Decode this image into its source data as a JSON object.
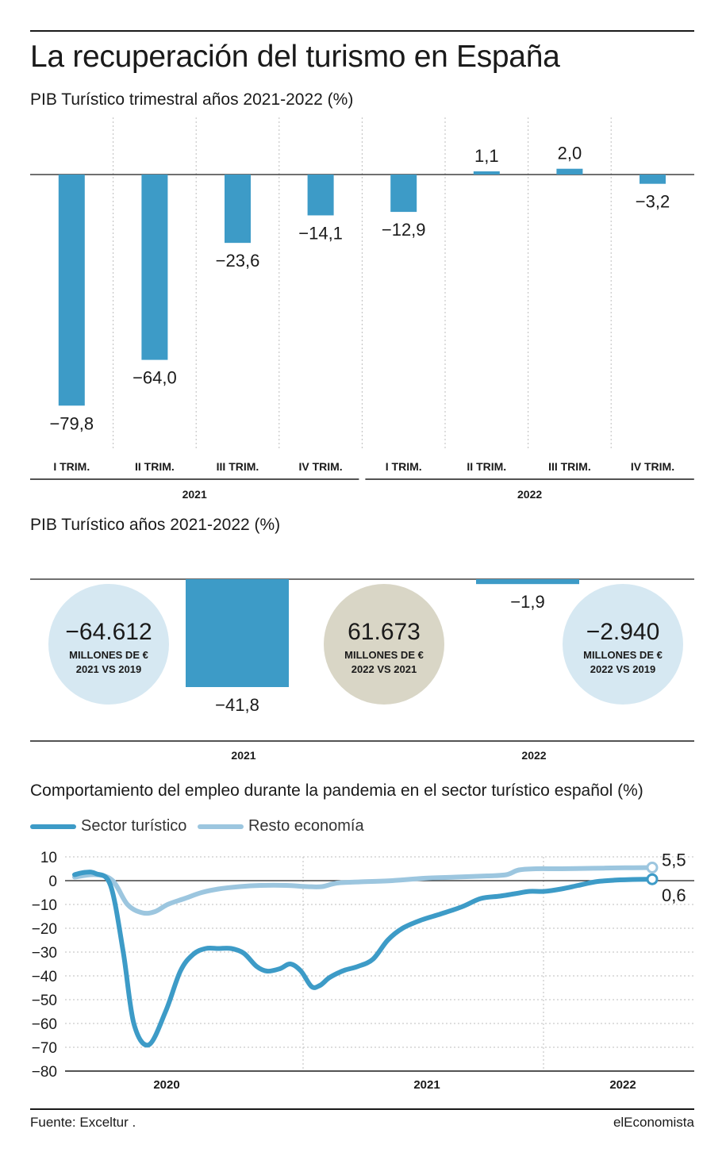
{
  "header": {
    "title": "La recuperación del turismo en España"
  },
  "footer": {
    "source": "Fuente: Exceltur .",
    "brand": "elEconomista"
  },
  "colors": {
    "bar": "#3d9bc7",
    "sector_line": "#3d9bc7",
    "resto_line": "#9cc6df",
    "circle_blue": "#d6e8f2",
    "circle_beige": "#d9d6c6",
    "grid": "#bdbdbd"
  },
  "chart_data": [
    {
      "type": "bar",
      "title": "PIB Turístico trimestral años 2021-2022 (%)",
      "categories": [
        "I TRIM.",
        "II TRIM.",
        "III TRIM.",
        "IV TRIM.",
        "I TRIM.",
        "II TRIM.",
        "III TRIM.",
        "IV TRIM."
      ],
      "values": [
        -79.8,
        -64.0,
        -23.6,
        -14.1,
        -12.9,
        1.1,
        2.0,
        -3.2
      ],
      "value_labels": [
        "−79,8",
        "−64,0",
        "−23,6",
        "−14,1",
        "−12,9",
        "1,1",
        "2,0",
        "−3,2"
      ],
      "groups": [
        {
          "label": "2021",
          "categories": 4
        },
        {
          "label": "2022",
          "categories": 4
        }
      ],
      "ylim": [
        -80,
        2
      ],
      "grid": "vertical dotted"
    },
    {
      "type": "bar",
      "title": "PIB Turístico años 2021-2022 (%)",
      "categories": [
        "2021",
        "2022"
      ],
      "values": [
        -41.8,
        -1.9
      ],
      "value_labels": [
        "−41,8",
        "−1,9"
      ],
      "ylim": [
        -45,
        0
      ],
      "annotations": [
        {
          "value": "−64.612",
          "line1": "MILLONES DE €",
          "line2": "2021 VS 2019",
          "style": "blue"
        },
        {
          "value": "61.673",
          "line1": "MILLONES DE €",
          "line2": "2022 VS 2021",
          "style": "beige"
        },
        {
          "value": "−2.940",
          "line1": "MILLONES DE €",
          "line2": "2022 VS 2019",
          "style": "blue"
        }
      ]
    },
    {
      "type": "line",
      "title": "Comportamiento del empleo durante la pandemia en el sector turístico español (%)",
      "x_ticks": [
        "2020",
        "2021",
        "2022"
      ],
      "x_range": [
        0,
        28
      ],
      "ylim": [
        -80,
        10
      ],
      "y_ticks": [
        "10",
        "0",
        "−10",
        "−20",
        "−30",
        "−40",
        "−50",
        "−60",
        "−70",
        "−80"
      ],
      "y_tick_values": [
        10,
        0,
        -10,
        -20,
        -30,
        -40,
        -50,
        -60,
        -70,
        -80
      ],
      "grid": "horizontal dotted",
      "series": [
        {
          "name": "Sector turístico",
          "x": [
            0,
            0.5,
            1,
            1.7,
            2.3,
            2.8,
            3.5,
            4.3,
            5,
            5.6,
            6.2,
            6.8,
            7.4,
            8,
            8.6,
            9.1,
            9.7,
            10.2,
            10.7,
            11.2,
            11.6,
            12,
            12.4,
            12.8,
            13.4,
            14.1,
            14.8,
            15.5,
            16.4,
            17.3,
            18.3,
            19.2,
            20.1,
            20.8,
            21.5,
            22.2,
            23,
            23.8,
            24.6,
            25.5,
            26.4,
            27.3
          ],
          "values": [
            2.5,
            3.5,
            3,
            -2,
            -30,
            -60,
            -69,
            -55,
            -38,
            -31,
            -28.5,
            -28.5,
            -28.5,
            -30.5,
            -36,
            -38,
            -37,
            -35,
            -38,
            -44.5,
            -44,
            -41,
            -39,
            -37.5,
            -36,
            -33,
            -25,
            -20,
            -16.5,
            -14,
            -11,
            -7.5,
            -6.5,
            -5.5,
            -4.5,
            -4.5,
            -3.5,
            -2,
            -0.5,
            0.2,
            0.5,
            0.6
          ],
          "end_label": "0,6"
        },
        {
          "name": "Resto economía",
          "x": [
            0,
            1,
            1.8,
            2.5,
            3.2,
            3.8,
            4.4,
            5.2,
            6,
            6.8,
            7.8,
            8.8,
            10,
            11,
            11.7,
            12.4,
            13.5,
            15,
            16.5,
            18,
            19.5,
            20.4,
            21,
            21.8,
            23,
            24.5,
            26,
            27.3
          ],
          "values": [
            1.5,
            2.5,
            0,
            -10,
            -13.5,
            -13,
            -10,
            -7.5,
            -5,
            -3.5,
            -2.5,
            -2,
            -2,
            -2.5,
            -2.5,
            -1,
            -0.5,
            0,
            1,
            1.5,
            2,
            2.5,
            4.5,
            5,
            5,
            5.2,
            5.4,
            5.5
          ],
          "end_label": "5,5"
        }
      ]
    }
  ]
}
